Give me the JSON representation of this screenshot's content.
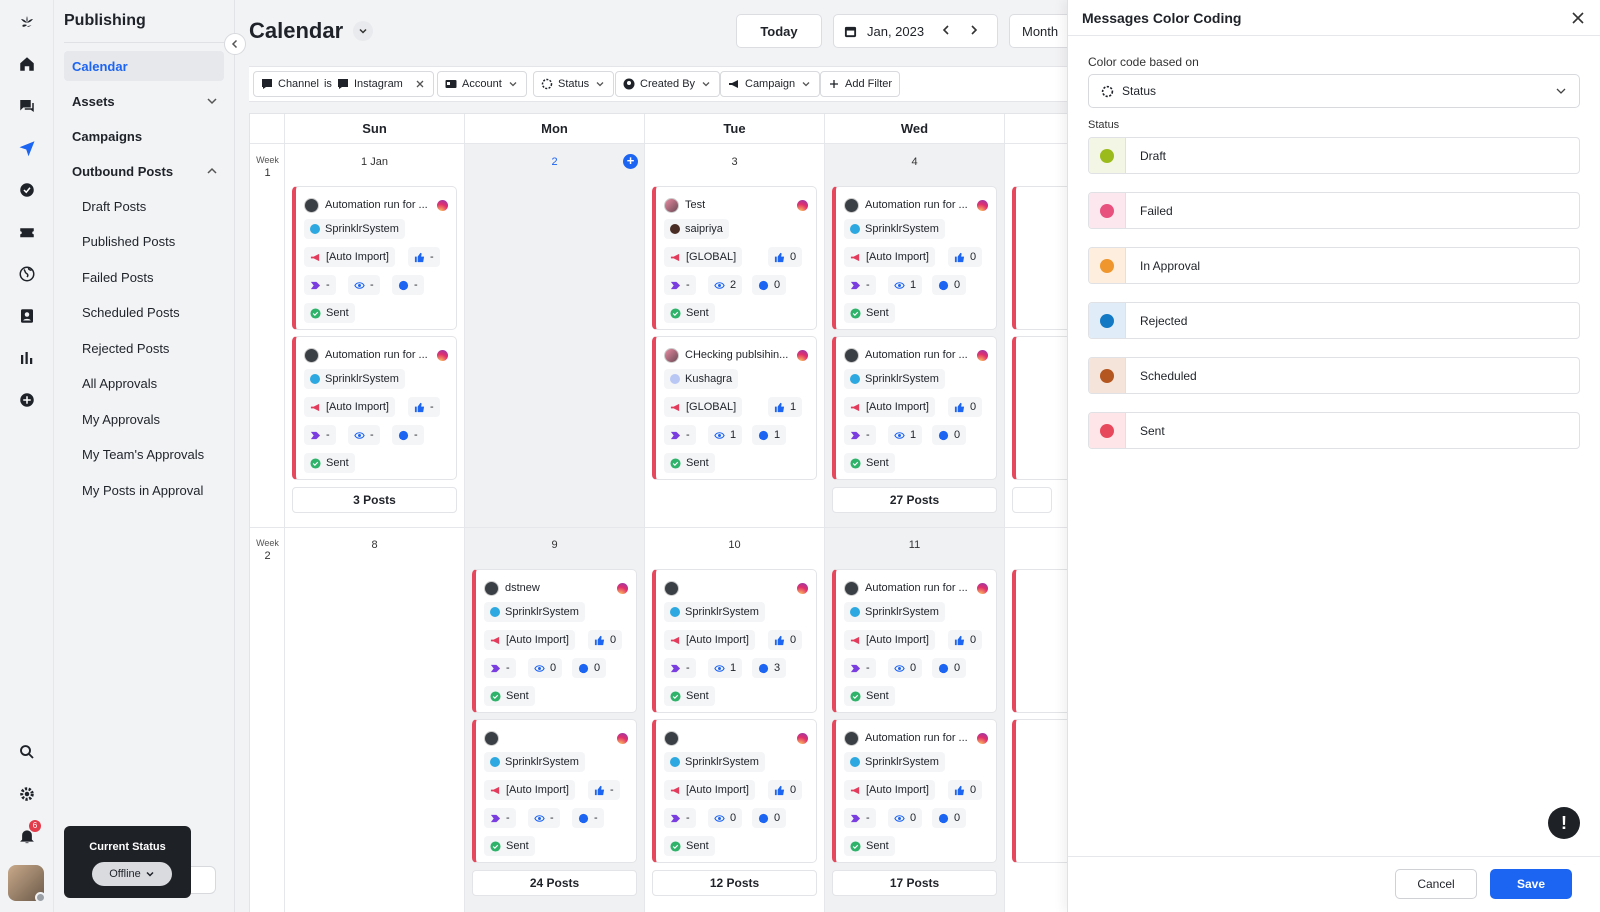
{
  "app": {
    "section_title": "Publishing",
    "notification_count": "6"
  },
  "nav": {
    "calendar": "Calendar",
    "assets": "Assets",
    "campaigns": "Campaigns",
    "outbound_posts": "Outbound Posts",
    "sub_items": [
      "Draft Posts",
      "Published Posts",
      "Failed Posts",
      "Scheduled Posts",
      "Rejected Posts",
      "All Approvals",
      "My Approvals",
      "My Team's Approvals",
      "My Posts in Approval"
    ]
  },
  "current_status": {
    "title": "Current Status",
    "value": "Offline"
  },
  "header": {
    "title": "Calendar",
    "today": "Today",
    "date": "Jan, 2023",
    "view": "Month"
  },
  "filters": {
    "channel_label": "Channel",
    "channel_op": "is",
    "channel_value": "Instagram",
    "account": "Account",
    "status": "Status",
    "created_by": "Created By",
    "campaign": "Campaign",
    "add_filter": "Add Filter"
  },
  "calendar": {
    "days": [
      "Sun",
      "Mon",
      "Tue",
      "Wed"
    ],
    "weeks": [
      {
        "label": "Week",
        "num": "1",
        "dates": [
          "1 Jan",
          "2",
          "3",
          "4"
        ]
      },
      {
        "label": "Week",
        "num": "2",
        "dates": [
          "8",
          "9",
          "10",
          "11"
        ]
      }
    ],
    "more": {
      "w1_sun": "3 Posts",
      "w1_wed": "27 Posts",
      "w2_mon": "24 Posts",
      "w2_tue": "12 Posts",
      "w2_wed": "17 Posts"
    },
    "cards": [
      {
        "id": "c1",
        "title": "Automation run for ...",
        "user": "SprinklrSystem",
        "campaign": "[Auto Import]",
        "likes": "-",
        "tags": "-",
        "views": "-",
        "comments": "-",
        "status": "Sent"
      },
      {
        "id": "c2",
        "title": "Automation run for ...",
        "user": "SprinklrSystem",
        "campaign": "[Auto Import]",
        "likes": "-",
        "tags": "-",
        "views": "-",
        "comments": "-",
        "status": "Sent"
      },
      {
        "id": "c3",
        "title": "Test",
        "user": "saipriya",
        "campaign": "[GLOBAL]",
        "likes": "0",
        "tags": "-",
        "views": "2",
        "comments": "0",
        "status": "Sent"
      },
      {
        "id": "c4",
        "title": "CHecking publsihin...",
        "user": "Kushagra",
        "campaign": "[GLOBAL]",
        "likes": "1",
        "tags": "-",
        "views": "1",
        "comments": "1",
        "status": "Sent"
      },
      {
        "id": "c5",
        "title": "Automation run for ...",
        "user": "SprinklrSystem",
        "campaign": "[Auto Import]",
        "likes": "0",
        "tags": "-",
        "views": "1",
        "comments": "0",
        "status": "Sent"
      },
      {
        "id": "c6",
        "title": "Automation run for ...",
        "user": "SprinklrSystem",
        "campaign": "[Auto Import]",
        "likes": "0",
        "tags": "-",
        "views": "1",
        "comments": "0",
        "status": "Sent"
      },
      {
        "id": "c7",
        "title": "dstnew",
        "user": "SprinklrSystem",
        "campaign": "[Auto Import]",
        "likes": "0",
        "tags": "-",
        "views": "0",
        "comments": "0",
        "status": "Sent"
      },
      {
        "id": "c8",
        "title": "",
        "user": "SprinklrSystem",
        "campaign": "[Auto Import]",
        "likes": "-",
        "tags": "-",
        "views": "-",
        "comments": "-",
        "status": "Sent"
      },
      {
        "id": "c9",
        "title": "",
        "user": "SprinklrSystem",
        "campaign": "[Auto Import]",
        "likes": "0",
        "tags": "-",
        "views": "1",
        "comments": "3",
        "status": "Sent"
      },
      {
        "id": "c10",
        "title": "",
        "user": "SprinklrSystem",
        "campaign": "[Auto Import]",
        "likes": "0",
        "tags": "-",
        "views": "0",
        "comments": "0",
        "status": "Sent"
      },
      {
        "id": "c11",
        "title": "Automation run for ...",
        "user": "SprinklrSystem",
        "campaign": "[Auto Import]",
        "likes": "0",
        "tags": "-",
        "views": "0",
        "comments": "0",
        "status": "Sent"
      },
      {
        "id": "c12",
        "title": "Automation run for ...",
        "user": "SprinklrSystem",
        "campaign": "[Auto Import]",
        "likes": "0",
        "tags": "-",
        "views": "0",
        "comments": "0",
        "status": "Sent"
      }
    ]
  },
  "panel": {
    "title": "Messages Color Coding",
    "code_label": "Color code based on",
    "code_value": "Status",
    "status_label": "Status",
    "statuses": [
      {
        "name": "Draft",
        "color": "#9bbb1c",
        "bg": "#f3f6e4"
      },
      {
        "name": "Failed",
        "color": "#e8507e",
        "bg": "#fde7ef"
      },
      {
        "name": "In Approval",
        "color": "#f0962e",
        "bg": "#fdeedd"
      },
      {
        "name": "Rejected",
        "color": "#1479c4",
        "bg": "#e0edf8"
      },
      {
        "name": "Scheduled",
        "color": "#b4561f",
        "bg": "#f4e4da"
      },
      {
        "name": "Sent",
        "color": "#e8485b",
        "bg": "#fde5e8"
      }
    ],
    "cancel": "Cancel",
    "save": "Save"
  },
  "colors": {
    "accent": "#1c64f2",
    "sent_border": "#e5485c"
  }
}
